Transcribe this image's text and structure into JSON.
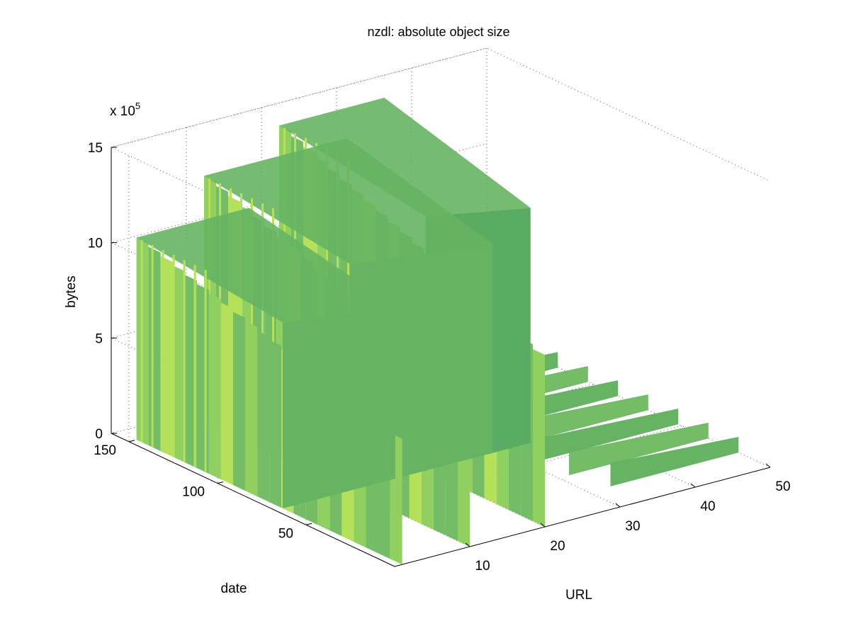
{
  "chart_data": {
    "type": "surface",
    "title": "nzdl: absolute object size",
    "xlabel": "URL",
    "ylabel": "date",
    "zlabel": "bytes",
    "z_exponent_label": "x 10",
    "z_exponent": "5",
    "xlim": [
      0,
      50
    ],
    "ylim": [
      0,
      160
    ],
    "zlim": [
      0,
      15
    ],
    "x_ticks": [
      "10",
      "20",
      "30",
      "40",
      "50"
    ],
    "y_ticks": [
      "50",
      "100",
      "150"
    ],
    "z_ticks": [
      "0",
      "5",
      "10",
      "15"
    ],
    "grid": true,
    "colormap": [
      "#5aac62",
      "#66b463",
      "#74bd66",
      "#8fd060",
      "#b5e05a"
    ],
    "walls": [
      {
        "url_start": 1,
        "url_end": 16,
        "date": 150,
        "height": 10.6
      },
      {
        "url_start": 10,
        "url_end": 29,
        "date": 150,
        "height": 12.9
      },
      {
        "url_start": 20,
        "url_end": 34,
        "date": 150,
        "height": 14.5
      }
    ],
    "ridges": [
      {
        "url_start": 30,
        "url_end": 50,
        "height": 0.8
      }
    ]
  }
}
